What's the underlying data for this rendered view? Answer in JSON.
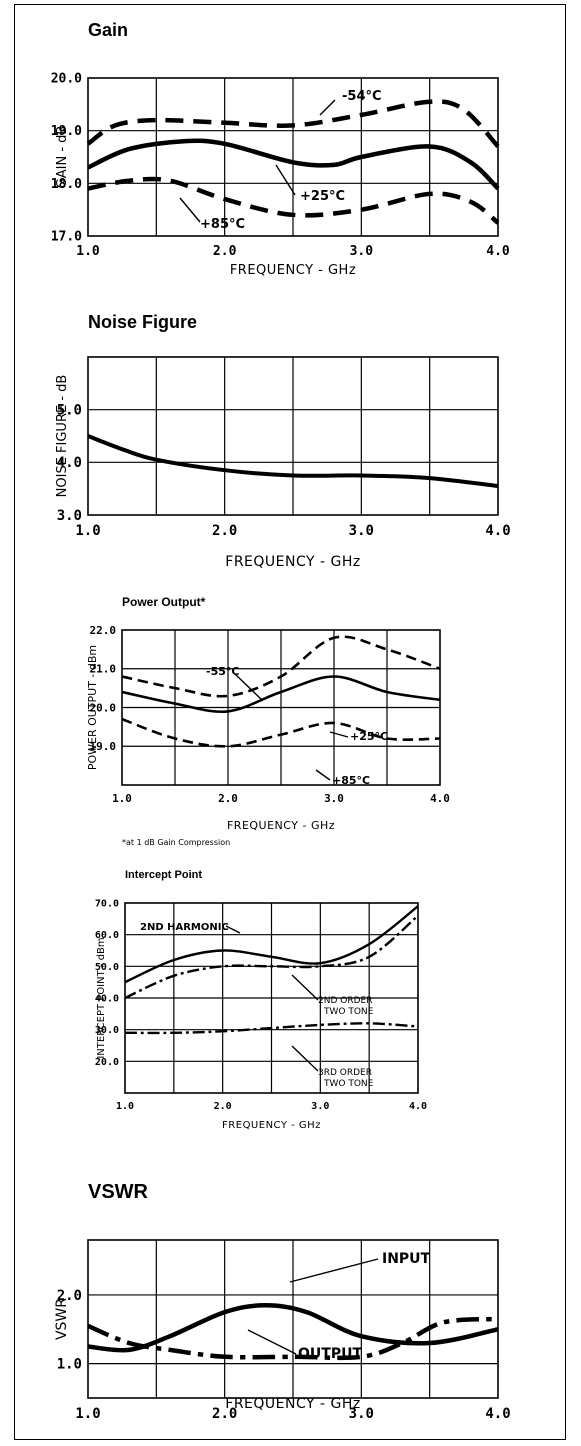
{
  "chart_data": [
    {
      "type": "line",
      "title": "Gain",
      "xlabel": "FREQUENCY - GHz",
      "ylabel": "GAIN - dB",
      "xlim": [
        1.0,
        4.0
      ],
      "ylim": [
        17.0,
        20.0
      ],
      "xticks": [
        "1.0",
        "2.0",
        "3.0",
        "4.0"
      ],
      "yticks": [
        "17.0",
        "18.0",
        "19.0",
        "20.0"
      ],
      "grid": true,
      "series": [
        {
          "name": "-54°C",
          "style": "dashed",
          "x": [
            1.0,
            1.2,
            1.5,
            2.0,
            2.5,
            3.0,
            3.5,
            3.75,
            4.0
          ],
          "y": [
            18.75,
            19.1,
            19.2,
            19.15,
            19.1,
            19.3,
            19.55,
            19.4,
            18.7
          ]
        },
        {
          "name": "+25°C",
          "style": "solid",
          "x": [
            1.0,
            1.3,
            1.7,
            2.0,
            2.5,
            2.8,
            3.0,
            3.5,
            3.8,
            4.0
          ],
          "y": [
            18.3,
            18.65,
            18.8,
            18.75,
            18.4,
            18.35,
            18.5,
            18.7,
            18.4,
            17.9
          ]
        },
        {
          "name": "+85°C",
          "style": "dashed",
          "x": [
            1.0,
            1.3,
            1.6,
            2.0,
            2.5,
            3.0,
            3.5,
            3.8,
            4.0
          ],
          "y": [
            17.9,
            18.05,
            18.05,
            17.7,
            17.4,
            17.5,
            17.8,
            17.65,
            17.25
          ]
        }
      ],
      "annotations": [
        "-54°C",
        "+25°C",
        "+85°C"
      ]
    },
    {
      "type": "line",
      "title": "Noise Figure",
      "xlabel": "FREQUENCY - GHz",
      "ylabel": "NOISE FIGURE - dB",
      "xlim": [
        1.0,
        4.0
      ],
      "ylim": [
        3.0,
        6.0
      ],
      "xticks": [
        "1.0",
        "2.0",
        "3.0",
        "4.0"
      ],
      "yticks": [
        "3.0",
        "4.0",
        "5.0"
      ],
      "grid": true,
      "series": [
        {
          "style": "solid",
          "x": [
            1.0,
            1.25,
            1.5,
            2.0,
            2.5,
            3.0,
            3.5,
            4.0
          ],
          "y": [
            4.5,
            4.25,
            4.05,
            3.85,
            3.75,
            3.75,
            3.7,
            3.55
          ]
        }
      ]
    },
    {
      "type": "line",
      "title": "Power Output*",
      "xlabel": "FREQUENCY - GHz",
      "ylabel": "POWER OUTPUT - dBm",
      "footnote": "*at 1 dB Gain Compression",
      "xlim": [
        1.0,
        4.0
      ],
      "ylim": [
        18.0,
        22.0
      ],
      "xticks": [
        "1.0",
        "2.0",
        "3.0",
        "4.0"
      ],
      "yticks": [
        "19.0",
        "20.0",
        "21.0",
        "22.0"
      ],
      "grid": true,
      "series": [
        {
          "name": "-55°C",
          "style": "dashed",
          "x": [
            1.0,
            1.5,
            2.0,
            2.5,
            3.0,
            3.5,
            4.0
          ],
          "y": [
            20.8,
            20.5,
            20.3,
            20.8,
            21.8,
            21.5,
            21.0
          ]
        },
        {
          "name": "+25°C",
          "style": "solid",
          "x": [
            1.0,
            1.5,
            2.0,
            2.5,
            3.0,
            3.5,
            4.0
          ],
          "y": [
            20.4,
            20.1,
            19.9,
            20.4,
            20.8,
            20.4,
            20.2
          ]
        },
        {
          "name": "+85°C",
          "style": "dashed",
          "x": [
            1.0,
            1.5,
            2.0,
            2.5,
            3.0,
            3.5,
            4.0
          ],
          "y": [
            19.7,
            19.2,
            19.0,
            19.3,
            19.6,
            19.2,
            19.2
          ]
        }
      ],
      "annotations": [
        "-55°C",
        "+25°C",
        "+85°C"
      ]
    },
    {
      "type": "line",
      "title": "Intercept Point",
      "xlabel": "FREQUENCY - GHz",
      "ylabel": "INTERCEPT POINT - dBm",
      "xlim": [
        1.0,
        4.0
      ],
      "ylim": [
        10.0,
        70.0
      ],
      "xticks": [
        "1.0",
        "2.0",
        "3.0",
        "4.0"
      ],
      "yticks": [
        "20.0",
        "30.0",
        "40.0",
        "50.0",
        "60.0",
        "70.0"
      ],
      "grid": true,
      "series": [
        {
          "name": "2ND HARMONIC",
          "style": "solid",
          "x": [
            1.0,
            1.5,
            2.0,
            2.5,
            3.0,
            3.5,
            4.0
          ],
          "y": [
            45,
            52,
            55,
            53,
            51,
            57,
            69
          ]
        },
        {
          "name": "2ND ORDER TWO TONE",
          "style": "dashdot",
          "x": [
            1.0,
            1.5,
            2.0,
            2.5,
            3.0,
            3.5,
            4.0
          ],
          "y": [
            40,
            47,
            50,
            50,
            50,
            53,
            66
          ]
        },
        {
          "name": "3RD ORDER TWO TONE",
          "style": "dashdot",
          "x": [
            1.0,
            1.5,
            2.0,
            2.5,
            3.0,
            3.5,
            4.0
          ],
          "y": [
            29,
            29,
            29.5,
            30.5,
            31.5,
            32,
            31
          ]
        }
      ],
      "annotations": [
        "2ND HARMONIC",
        "2ND ORDER TWO TONE",
        "3RD ORDER TWO TONE"
      ]
    },
    {
      "type": "line",
      "title": "VSWR",
      "xlabel": "FREQUENCY - GHz",
      "ylabel": "VSWR",
      "xlim": [
        1.0,
        4.0
      ],
      "ylim": [
        0.5,
        2.8
      ],
      "xticks": [
        "1.0",
        "2.0",
        "3.0",
        "4.0"
      ],
      "yticks": [
        "1.0",
        "2.0"
      ],
      "grid": true,
      "series": [
        {
          "name": "INPUT",
          "style": "solid",
          "x": [
            1.0,
            1.3,
            1.6,
            2.0,
            2.3,
            2.6,
            3.0,
            3.5,
            4.0
          ],
          "y": [
            1.25,
            1.2,
            1.4,
            1.75,
            1.85,
            1.75,
            1.4,
            1.3,
            1.5
          ]
        },
        {
          "name": "OUTPUT",
          "style": "dashdot",
          "x": [
            1.0,
            1.3,
            1.6,
            2.0,
            2.5,
            3.0,
            3.3,
            3.6,
            4.0
          ],
          "y": [
            1.55,
            1.3,
            1.2,
            1.1,
            1.1,
            1.1,
            1.3,
            1.6,
            1.65
          ]
        }
      ],
      "annotations": [
        "INPUT",
        "OUTPUT"
      ]
    }
  ],
  "colors": {
    "ink": "#000000",
    "paper": "#ffffff"
  }
}
